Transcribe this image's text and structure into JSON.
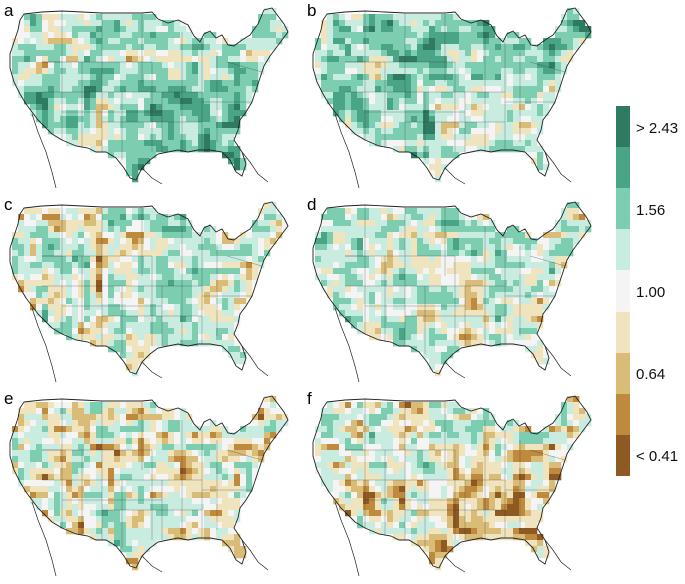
{
  "panels": [
    {
      "label": "a",
      "bias": 0.35,
      "seed": 11
    },
    {
      "label": "b",
      "bias": 0.55,
      "seed": 23
    },
    {
      "label": "c",
      "bias": 0.05,
      "seed": 37
    },
    {
      "label": "d",
      "bias": 0.2,
      "seed": 41
    },
    {
      "label": "e",
      "bias": -0.1,
      "seed": 53
    },
    {
      "label": "f",
      "bias": -0.05,
      "seed": 67
    }
  ],
  "legend": {
    "colors": [
      "#2f7a63",
      "#4aa486",
      "#7dcdb1",
      "#c9ece1",
      "#f4f4f4",
      "#efe4bd",
      "#d9bc78",
      "#c08a3e",
      "#8f5a22"
    ],
    "labels": [
      "> 2.43",
      "1.56",
      "1.00",
      "0.64",
      "< 0.41"
    ]
  }
}
